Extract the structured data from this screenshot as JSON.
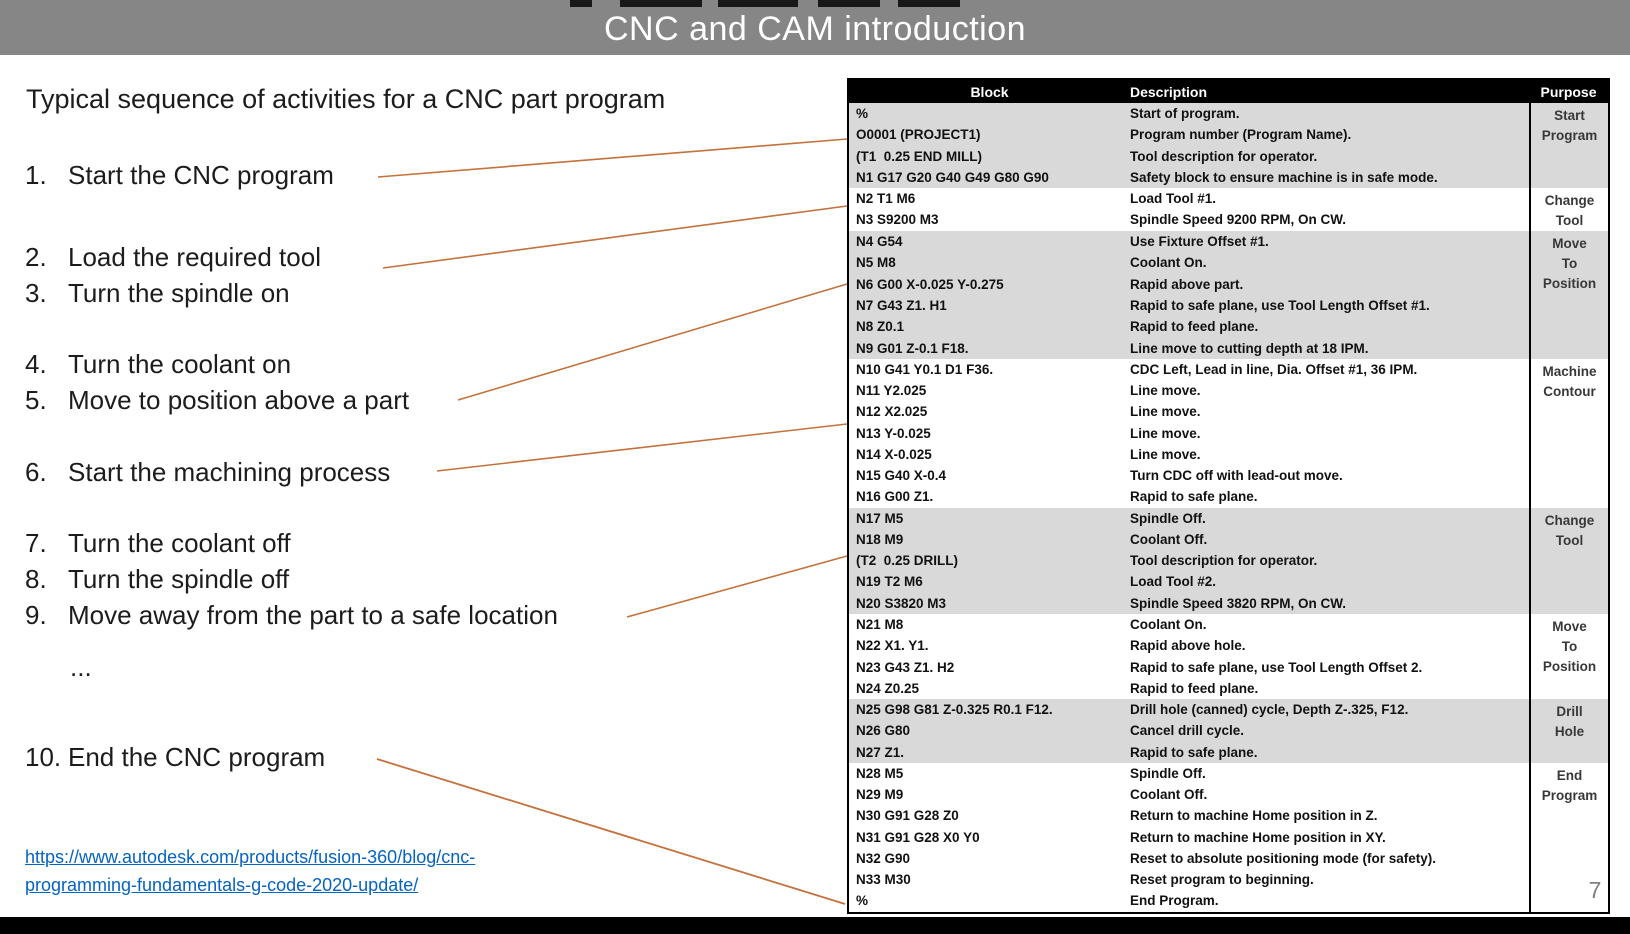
{
  "title": "CNC and CAM introduction",
  "page_number": "7",
  "left": {
    "heading": "Typical sequence of activities for a CNC part program",
    "items": [
      {
        "num": "1.",
        "label": "Start the CNC program"
      },
      {
        "num": "2.",
        "label": "Load the required tool"
      },
      {
        "num": "3.",
        "label": "Turn the spindle on"
      },
      {
        "num": "4.",
        "label": "Turn the coolant on"
      },
      {
        "num": "5.",
        "label": "Move to position above a part"
      },
      {
        "num": "6.",
        "label": "Start the machining process"
      },
      {
        "num": "7.",
        "label": "Turn the coolant off"
      },
      {
        "num": "8.",
        "label": "Turn the spindle off"
      },
      {
        "num": "9.",
        "label": "Move away from the part to a safe location"
      },
      {
        "num": "",
        "label": "..."
      },
      {
        "num": "10.",
        "label": "End the CNC program"
      }
    ],
    "link_line1": "https://www.autodesk.com/products/fusion-360/blog/cnc-",
    "link_line2": "programming-fundamentals-g-code-2020-update/"
  },
  "table": {
    "headers": [
      "Block",
      "Description",
      "Purpose"
    ],
    "groups": [
      {
        "purpose": "Start\nProgram",
        "shaded": true,
        "rows": [
          [
            "%",
            "Start of program."
          ],
          [
            "O0001 (PROJECT1)",
            "Program number (Program Name)."
          ],
          [
            "(T1  0.25 END MILL)",
            "Tool description for operator."
          ],
          [
            "N1 G17 G20 G40 G49 G80 G90",
            "Safety block to ensure machine is in safe mode."
          ]
        ]
      },
      {
        "purpose": "Change\nTool",
        "shaded": false,
        "rows": [
          [
            "N2 T1 M6",
            "Load Tool #1."
          ],
          [
            "N3 S9200 M3",
            "Spindle Speed 9200 RPM, On CW."
          ]
        ]
      },
      {
        "purpose": "Move\nTo\nPosition",
        "shaded": true,
        "rows": [
          [
            "N4 G54",
            "Use Fixture Offset #1."
          ],
          [
            "N5 M8",
            "Coolant On."
          ],
          [
            "N6 G00 X-0.025 Y-0.275",
            "Rapid above part."
          ],
          [
            "N7 G43 Z1. H1",
            "Rapid to safe plane, use Tool Length Offset #1."
          ],
          [
            "N8 Z0.1",
            "Rapid to feed plane."
          ],
          [
            "N9 G01 Z-0.1 F18.",
            "Line move to cutting depth at 18 IPM."
          ]
        ]
      },
      {
        "purpose": "Machine\nContour",
        "shaded": false,
        "rows": [
          [
            "N10 G41 Y0.1 D1 F36.",
            "CDC Left, Lead in line, Dia. Offset #1, 36 IPM."
          ],
          [
            "N11 Y2.025",
            "Line move."
          ],
          [
            "N12 X2.025",
            "Line move."
          ],
          [
            "N13 Y-0.025",
            "Line move."
          ],
          [
            "N14 X-0.025",
            "Line move."
          ],
          [
            "N15 G40 X-0.4",
            "Turn CDC off with lead-out move."
          ],
          [
            "N16 G00 Z1.",
            "Rapid to safe plane."
          ]
        ]
      },
      {
        "purpose": "Change\nTool",
        "shaded": true,
        "rows": [
          [
            "N17 M5",
            "Spindle Off."
          ],
          [
            "N18 M9",
            "Coolant Off."
          ],
          [
            "(T2  0.25 DRILL)",
            "Tool description for operator."
          ],
          [
            "N19 T2 M6",
            "Load Tool #2."
          ],
          [
            "N20 S3820 M3",
            "Spindle Speed 3820 RPM, On CW."
          ]
        ]
      },
      {
        "purpose": "Move\nTo\nPosition",
        "shaded": false,
        "rows": [
          [
            "N21 M8",
            "Coolant On."
          ],
          [
            "N22 X1. Y1.",
            "Rapid above hole."
          ],
          [
            "N23 G43 Z1. H2",
            "Rapid to safe plane, use Tool Length Offset 2."
          ],
          [
            "N24 Z0.25",
            "Rapid to feed plane."
          ]
        ]
      },
      {
        "purpose": "Drill\nHole",
        "shaded": true,
        "rows": [
          [
            "N25 G98 G81 Z-0.325 R0.1 F12.",
            "Drill hole (canned) cycle, Depth Z-.325, F12."
          ],
          [
            "N26 G80",
            "Cancel drill cycle."
          ],
          [
            "N27 Z1.",
            "Rapid to safe plane."
          ]
        ]
      },
      {
        "purpose": "End\nProgram",
        "shaded": false,
        "rows": [
          [
            "N28 M5",
            "Spindle Off."
          ],
          [
            "N29 M9",
            "Coolant Off."
          ],
          [
            "N30 G91 G28 Z0",
            "Return to machine Home position in Z."
          ],
          [
            "N31 G91 G28 X0 Y0",
            "Return to machine Home position in XY."
          ],
          [
            "N32 G90",
            "Reset to absolute positioning mode (for safety)."
          ],
          [
            "N33 M30",
            "Reset program to beginning."
          ],
          [
            "%",
            "End Program."
          ]
        ]
      }
    ]
  },
  "colors": {
    "title_bar": "#868686",
    "shaded_row": "#d9d9d9",
    "connector_orange": "#c4713b",
    "link_blue": "#0563c1",
    "page_number_gray": "#7f7f7f"
  }
}
